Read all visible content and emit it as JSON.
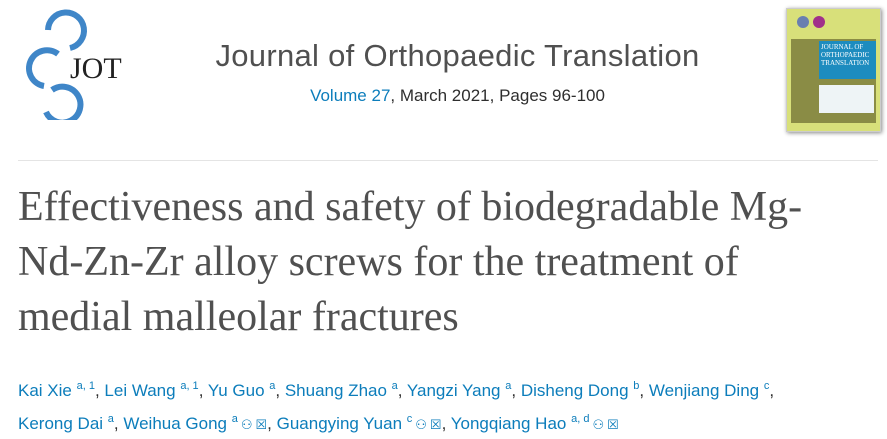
{
  "journal": {
    "logo_text": "JOT",
    "name": "Journal of Orthopaedic Translation",
    "volume_link": "Volume 27",
    "issue_info": ", March 2021, Pages 96-100",
    "cover_title": "JOURNAL OF ORTHOPAEDIC TRANSLATION"
  },
  "article": {
    "title_lines": [
      "Effectiveness and safety of biodegradable Mg-",
      "Nd-Zn-Zr alloy screws for the treatment of",
      "medial malleolar fractures"
    ]
  },
  "authors": [
    {
      "name": "Kai Xie",
      "sup": "a, 1"
    },
    {
      "name": "Lei Wang",
      "sup": "a, 1"
    },
    {
      "name": "Yu Guo",
      "sup": "a"
    },
    {
      "name": "Shuang Zhao",
      "sup": "a"
    },
    {
      "name": "Yangzi Yang",
      "sup": "a"
    },
    {
      "name": "Disheng Dong",
      "sup": "b"
    },
    {
      "name": "Wenjiang Ding",
      "sup": "c"
    },
    {
      "name": "Kerong Dai",
      "sup": "a"
    },
    {
      "name": "Weihua Gong",
      "sup": "a",
      "icons": [
        "person-icon",
        "email-icon"
      ]
    },
    {
      "name": "Guangying Yuan",
      "sup": "c",
      "icons": [
        "person-icon",
        "email-icon"
      ]
    },
    {
      "name": "Yongqiang Hao",
      "sup": "a, d",
      "icons": [
        "person-icon",
        "email-icon"
      ]
    }
  ],
  "colors": {
    "link": "#0c7dbb",
    "text": "#505050"
  }
}
